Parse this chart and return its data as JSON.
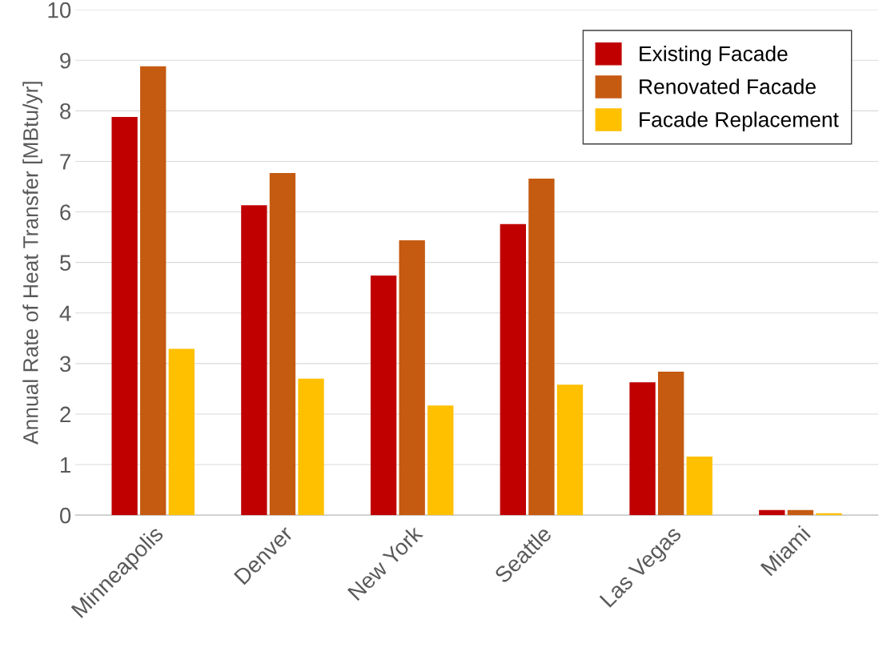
{
  "chart_data": {
    "type": "bar",
    "ylabel": "Annual Rate of Heat Transfer [MBtu/yr]",
    "categories": [
      "Minneapolis",
      "Denver",
      "New York",
      "Seattle",
      "Las Vegas",
      "Miami"
    ],
    "series": [
      {
        "name": "Existing Facade",
        "color": "#c00000",
        "values": [
          7.88,
          6.13,
          4.74,
          5.76,
          2.63,
          0.1
        ]
      },
      {
        "name": "Renovated Facade",
        "color": "#c55a11",
        "values": [
          8.88,
          6.77,
          5.44,
          6.66,
          2.84,
          0.1
        ]
      },
      {
        "name": "Facade Replacement",
        "color": "#ffc000",
        "values": [
          3.29,
          2.7,
          2.17,
          2.58,
          1.16,
          0.04
        ]
      }
    ],
    "ylim": [
      0,
      10
    ],
    "yticks": [
      0,
      1,
      2,
      3,
      4,
      5,
      6,
      7,
      8,
      9,
      10
    ],
    "grid": "y",
    "legend": "top right"
  }
}
